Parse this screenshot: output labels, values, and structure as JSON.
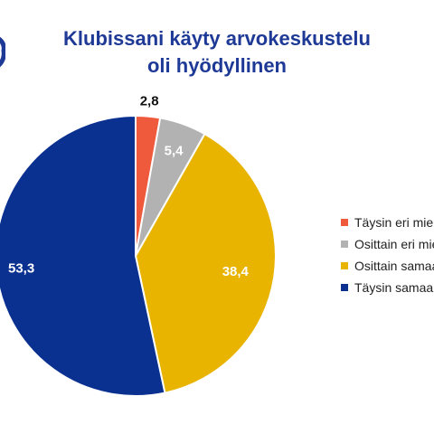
{
  "chart_data": {
    "type": "pie",
    "title": [
      "Klubissani käyty arvokeskustelu",
      "oli hyödyllinen"
    ],
    "series": [
      {
        "name": "Täysin eri mieltä",
        "value": 2.8,
        "label": "2,8",
        "color": "#f05a3c"
      },
      {
        "name": "Osittain eri mieltä",
        "value": 5.4,
        "label": "5,4",
        "color": "#b2b2b2"
      },
      {
        "name": "Osittain samaa mieltä",
        "value": 38.4,
        "label": "38,4",
        "color": "#e8b400"
      },
      {
        "name": "Täysin samaa mieltä",
        "value": 53.3,
        "label": "53,3",
        "color": "#0a3090"
      }
    ],
    "legend_position": "right",
    "label_colors": [
      "#111111",
      "#ffffff",
      "#ffffff",
      "#ffffff"
    ],
    "title_color": "#1e3a96"
  }
}
